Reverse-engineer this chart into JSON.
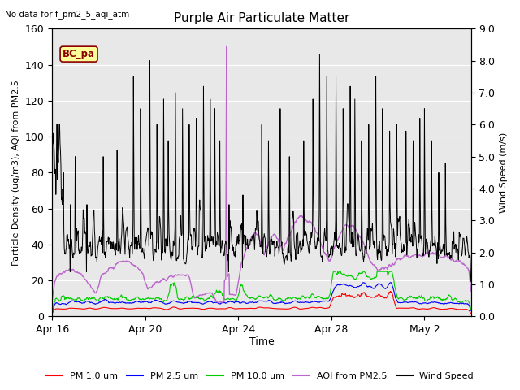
{
  "title": "Purple Air Particulate Matter",
  "subtitle": "No data for f_pm2_5_aqi_atm",
  "ylabel_left": "Particle Density (ug/m3), AQI from PM2.5",
  "ylabel_right": "Wind Speed (m/s)",
  "xlabel": "Time",
  "ylim_left": [
    0,
    160
  ],
  "ylim_right": [
    0,
    9.0
  ],
  "x_tick_labels": [
    "Apr 16",
    "Apr 20",
    "Apr 24",
    "Apr 28",
    "May 2"
  ],
  "x_ticks": [
    0,
    4,
    8,
    12,
    16
  ],
  "xlim": [
    0,
    18
  ],
  "bc_pa_label": "BC_pa",
  "bc_pa_facecolor": "#FFFF99",
  "bc_pa_edgecolor": "#8B0000",
  "legend_entries": [
    {
      "label": "PM 1.0 um",
      "color": "#FF0000"
    },
    {
      "label": "PM 2.5 um",
      "color": "#0000FF"
    },
    {
      "label": "PM 10.0 um",
      "color": "#00CC00"
    },
    {
      "label": "AQI from PM2.5",
      "color": "#BB66CC"
    },
    {
      "label": "Wind Speed",
      "color": "#000000"
    }
  ],
  "axes_bg_color": "#E8E8E8",
  "grid_color": "#FFFFFF",
  "yticks_left": [
    0,
    20,
    40,
    60,
    80,
    100,
    120,
    140,
    160
  ],
  "yticks_right_labels": [
    "0.0",
    "1.0",
    "2.0",
    "3.0",
    "4.0",
    "5.0",
    "6.0",
    "7.0",
    "8.0",
    "9.0"
  ]
}
